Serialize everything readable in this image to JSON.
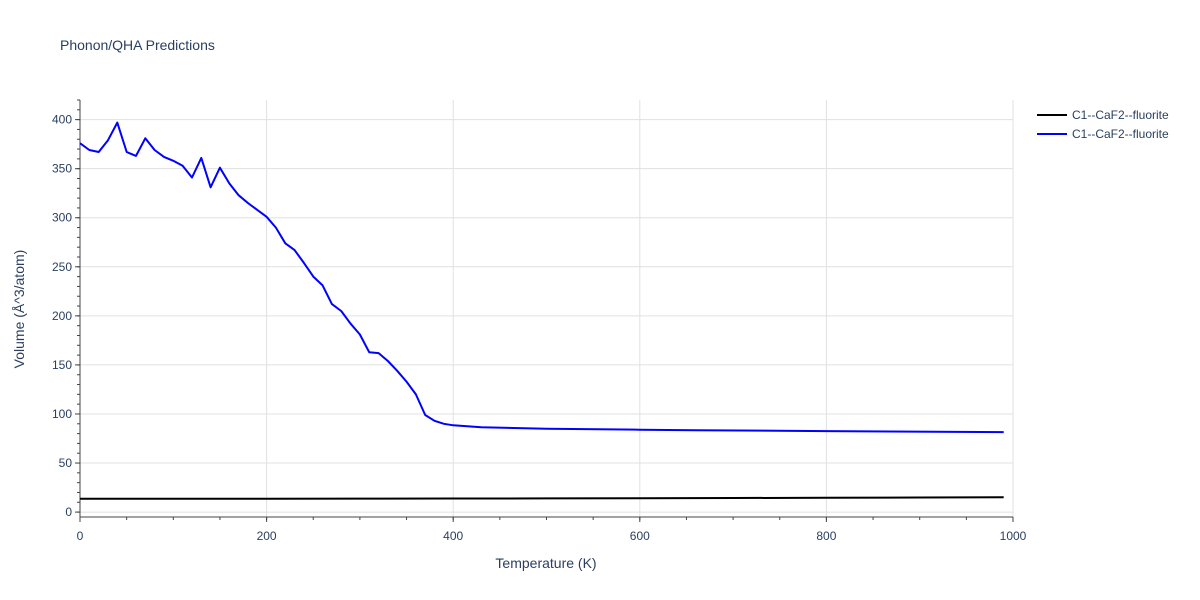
{
  "chart_data": {
    "type": "line",
    "title": "Phonon/QHA Predictions",
    "xlabel": "Temperature (K)",
    "ylabel": "Volume (Å^3/atom)",
    "xlim": [
      0,
      1000
    ],
    "ylim": [
      -5,
      420
    ],
    "x_ticks": [
      0,
      200,
      400,
      600,
      800,
      1000
    ],
    "y_ticks": [
      0,
      50,
      100,
      150,
      200,
      250,
      300,
      350,
      400
    ],
    "grid": true,
    "legend_position": "top-right",
    "series": [
      {
        "name": "C1--CaF2--fluorite",
        "color": "#000000",
        "x": [
          0,
          100,
          200,
          300,
          400,
          500,
          600,
          700,
          800,
          900,
          990
        ],
        "y": [
          13.5,
          13.6,
          13.7,
          13.8,
          13.9,
          14.0,
          14.2,
          14.4,
          14.6,
          14.9,
          15.2
        ]
      },
      {
        "name": "C1--CaF2--fluorite",
        "color": "#0000ff",
        "x": [
          0,
          10,
          20,
          30,
          40,
          50,
          60,
          70,
          80,
          90,
          100,
          110,
          120,
          130,
          140,
          150,
          160,
          170,
          180,
          190,
          200,
          210,
          220,
          230,
          240,
          250,
          260,
          270,
          280,
          290,
          300,
          310,
          320,
          330,
          340,
          350,
          360,
          370,
          380,
          390,
          400,
          430,
          500,
          600,
          660,
          800,
          990
        ],
        "y": [
          376,
          369,
          367,
          379,
          397,
          367,
          363,
          381,
          369,
          362,
          358,
          353,
          341,
          361,
          331,
          351,
          335,
          323,
          315,
          308,
          301,
          290,
          274,
          267,
          254,
          240,
          231,
          212,
          205,
          192,
          181,
          163,
          162,
          154,
          144,
          133,
          120,
          99,
          93,
          90,
          88.5,
          86.5,
          85,
          84,
          83.5,
          82.5,
          81.5
        ]
      }
    ]
  }
}
